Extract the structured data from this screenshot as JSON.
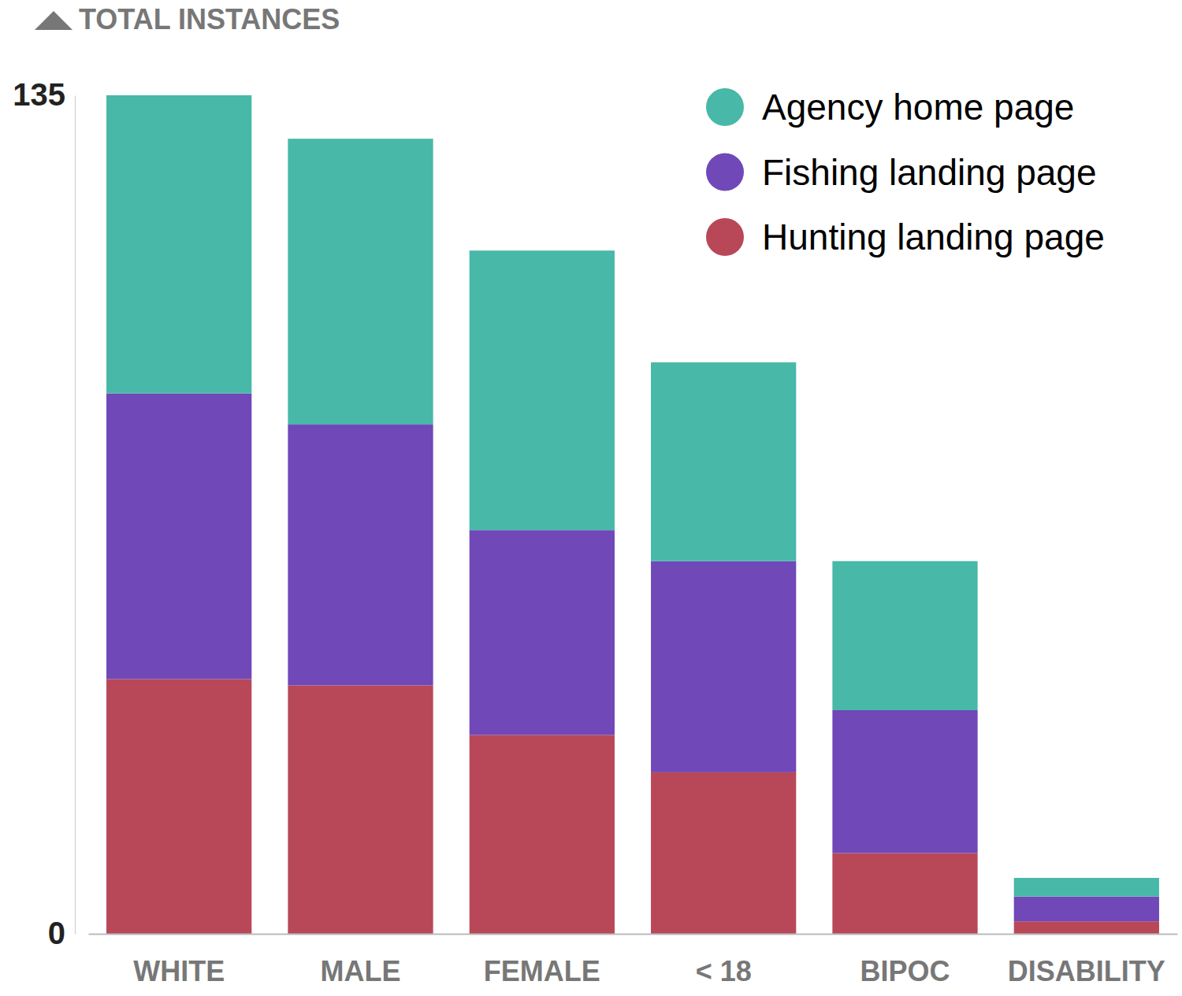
{
  "chart_data": {
    "type": "bar",
    "stacked": true,
    "legend": "top-right",
    "grid": false,
    "y_label": "TOTAL INSTANCES",
    "categories": [
      "WHITE",
      "MALE",
      "FEMALE",
      "< 18",
      "BIPOC",
      "DISABILITY"
    ],
    "series": [
      {
        "name": "Agency home page",
        "color": "#48b8a8",
        "values": [
          48,
          46,
          45,
          32,
          24,
          3
        ]
      },
      {
        "name": "Fishing landing page",
        "color": "#7048b8",
        "values": [
          46,
          42,
          33,
          34,
          23,
          4
        ]
      },
      {
        "name": "Hunting landing page",
        "color": "#b84858",
        "values": [
          41,
          40,
          32,
          26,
          13,
          2
        ]
      }
    ],
    "ylim": [
      0,
      135
    ],
    "yticks": [
      0,
      135
    ]
  }
}
